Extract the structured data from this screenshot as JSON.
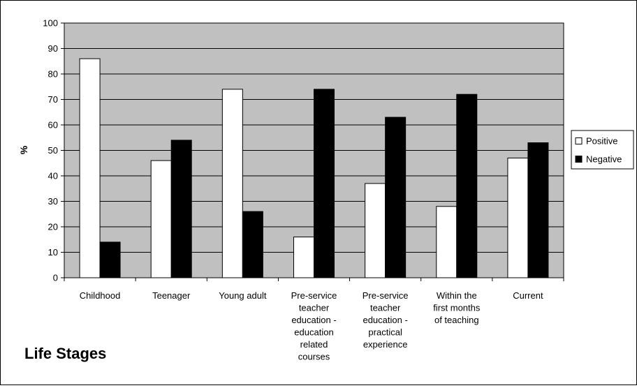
{
  "chart_data": {
    "type": "bar",
    "xlabel": "Life Stages",
    "ylabel": "%",
    "ylim": [
      0,
      100
    ],
    "yticks": [
      0,
      10,
      20,
      30,
      40,
      50,
      60,
      70,
      80,
      90,
      100
    ],
    "grid": true,
    "legend_position": "right",
    "categories": [
      [
        "Childhood"
      ],
      [
        "Teenager"
      ],
      [
        "Young adult"
      ],
      [
        "Pre-service",
        "teacher",
        "education -",
        "education",
        "related",
        "courses"
      ],
      [
        "Pre-service",
        "teacher",
        "education -",
        "practical",
        "experience"
      ],
      [
        "Within the",
        "first months",
        "of teaching"
      ],
      [
        "Current"
      ]
    ],
    "series": [
      {
        "name": "Positive",
        "color": "#ffffff",
        "values": [
          86,
          46,
          74,
          16,
          37,
          28,
          47
        ]
      },
      {
        "name": "Negative",
        "color": "#000000",
        "values": [
          14,
          54,
          26,
          74,
          63,
          72,
          53
        ]
      }
    ],
    "plot_background": "#c0c0c0"
  }
}
